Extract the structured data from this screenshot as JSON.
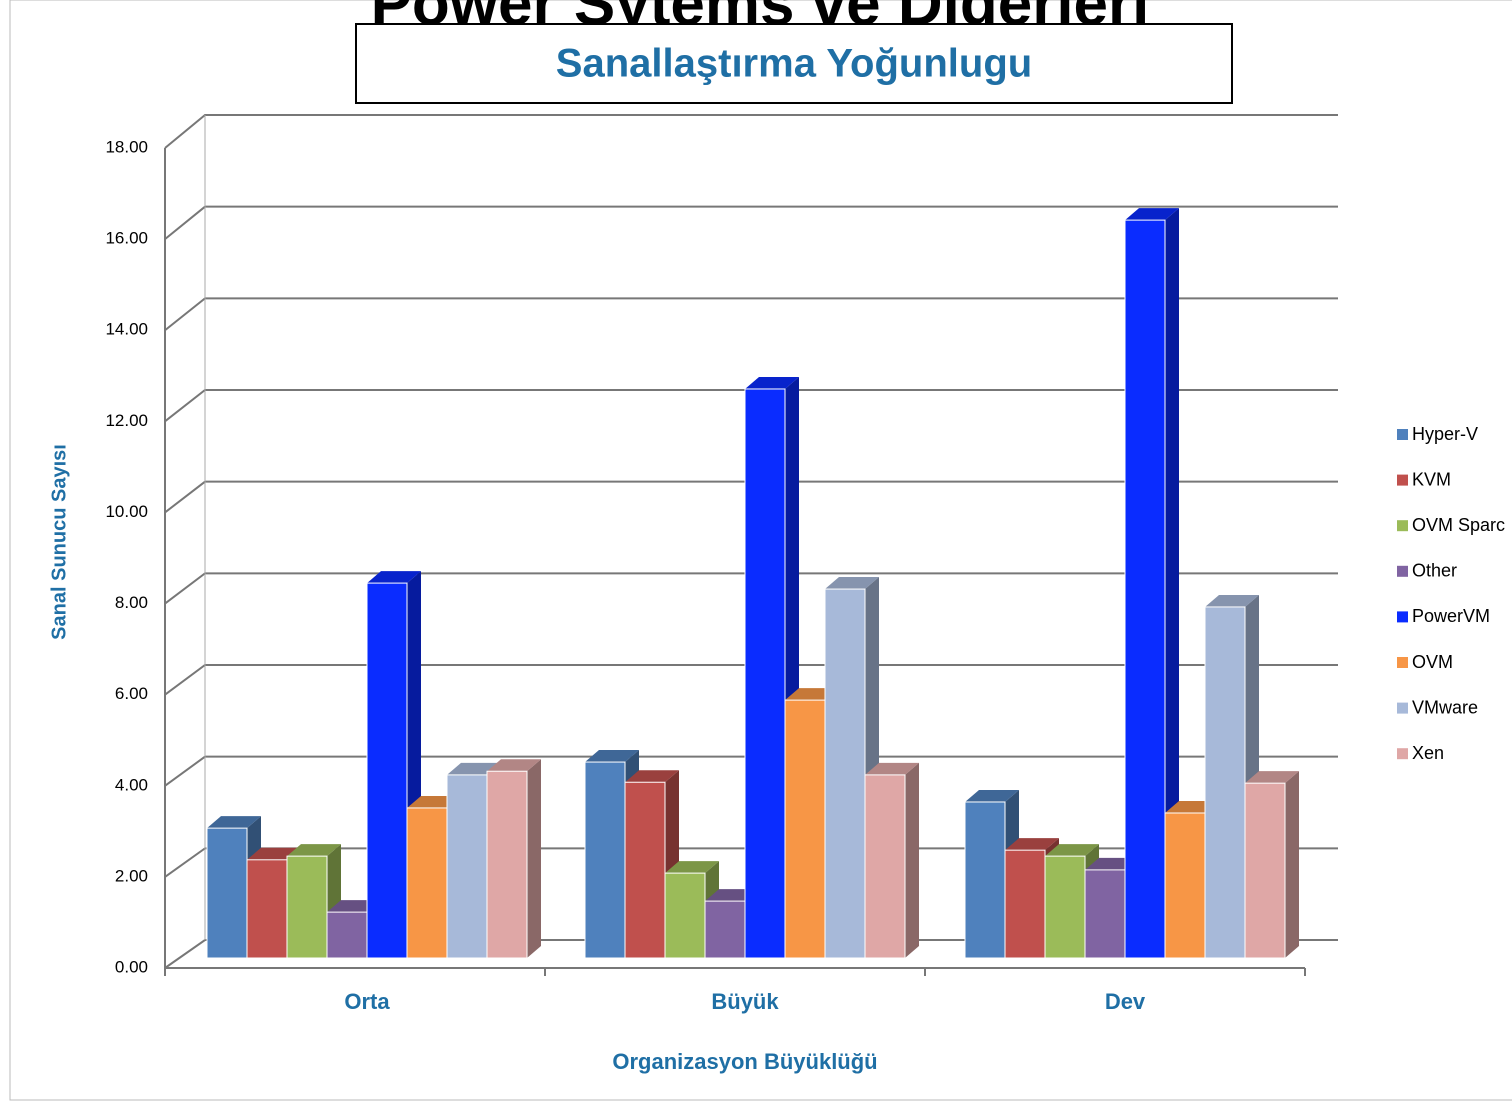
{
  "page_title": "Power Sytems ve Diğerleri",
  "chart_data": {
    "type": "bar3d",
    "title": "Sanallaştırma Yoğunlugu",
    "y_label": "Sanal Sunucu Sayısı",
    "x_label": "Organizasyon Büyüklüğü",
    "categories": [
      "Orta",
      "Büyük",
      "Dev"
    ],
    "series": [
      {
        "name": "Hyper-V",
        "color": "#4f81bd",
        "values": [
          2.83,
          4.27,
          3.4
        ]
      },
      {
        "name": "KVM",
        "color": "#c0504d",
        "values": [
          2.14,
          3.83,
          2.35
        ]
      },
      {
        "name": "OVM Sparc",
        "color": "#9bbb59",
        "values": [
          2.22,
          1.85,
          2.22
        ]
      },
      {
        "name": "Other",
        "color": "#8064a2",
        "values": [
          1.0,
          1.24,
          1.92
        ]
      },
      {
        "name": "PowerVM",
        "color": "#0a2cff",
        "values": [
          8.17,
          12.4,
          16.08
        ]
      },
      {
        "name": "OVM",
        "color": "#f79646",
        "values": [
          3.27,
          5.62,
          3.16
        ]
      },
      {
        "name": "VMware",
        "color": "#a7b9d9",
        "values": [
          3.99,
          8.04,
          7.65
        ]
      },
      {
        "name": "Xen",
        "color": "#dfa7a6",
        "values": [
          4.07,
          3.99,
          3.81
        ]
      }
    ],
    "ylim": [
      0,
      18
    ],
    "yticks": [
      {
        "value": 0,
        "label": "0.00"
      },
      {
        "value": 2,
        "label": "2.00"
      },
      {
        "value": 4,
        "label": "4.00"
      },
      {
        "value": 6,
        "label": "6.00"
      },
      {
        "value": 8,
        "label": "8.00"
      },
      {
        "value": 10,
        "label": "10.00"
      },
      {
        "value": 12,
        "label": "12.00"
      },
      {
        "value": 14,
        "label": "14.00"
      },
      {
        "value": 16,
        "label": "16.00"
      },
      {
        "value": 18,
        "label": "18.00"
      }
    ],
    "grid": true,
    "legend": "right"
  }
}
